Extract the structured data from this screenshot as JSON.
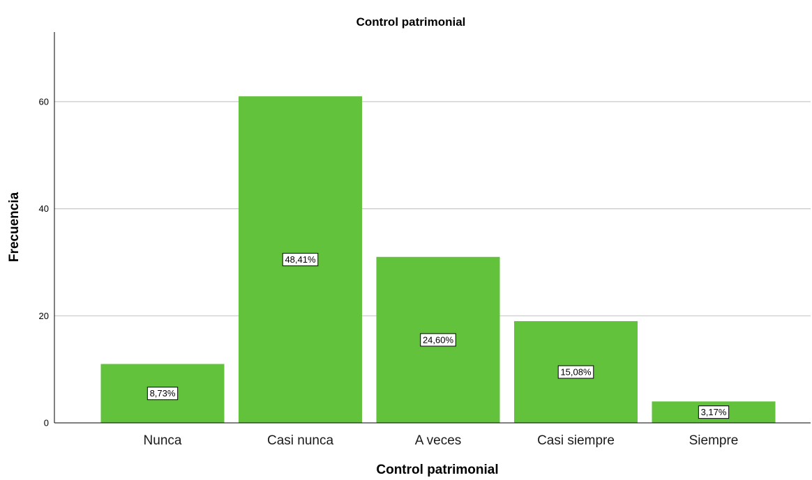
{
  "chart_data": {
    "type": "bar",
    "title": "Control patrimonial",
    "xlabel": "Control patrimonial",
    "ylabel": "Frecuencia",
    "categories": [
      "Nunca",
      "Casi nunca",
      "A veces",
      "Casi siempre",
      "Siempre"
    ],
    "values": [
      11,
      61,
      31,
      19,
      4
    ],
    "data_labels": [
      "8,73%",
      "48,41%",
      "24,60%",
      "15,08%",
      "3,17%"
    ],
    "ylim": [
      0,
      73
    ],
    "yticks": [
      0,
      20,
      40,
      60
    ],
    "grid": true,
    "legend": "none"
  },
  "colors": {
    "bar_fill": "#62c23b",
    "grid_line": "#c8c8c8",
    "axis_line": "#000000",
    "background": "#ffffff"
  }
}
